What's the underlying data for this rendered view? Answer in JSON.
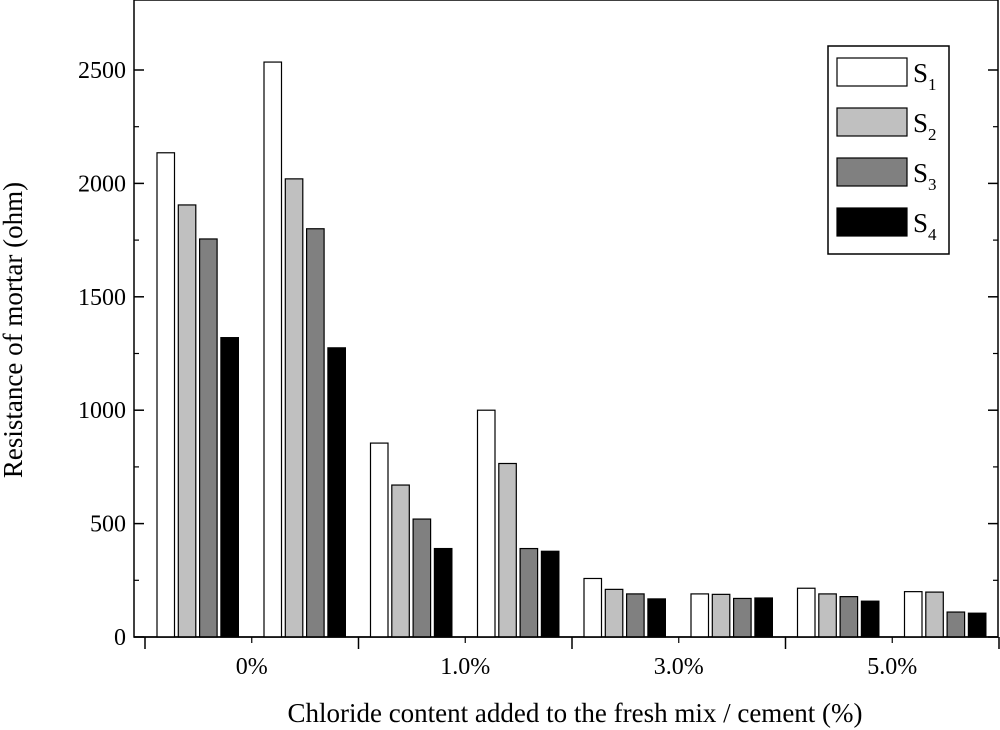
{
  "chart_data": {
    "type": "bar",
    "categories": [
      "0%",
      "1.0%",
      "3.0%",
      "5.0%"
    ],
    "groups": [
      {
        "category": "0%",
        "subgroups": [
          {
            "S1": 2135,
            "S2": 1905,
            "S3": 1755,
            "S4": 1320
          },
          {
            "S1": 2535,
            "S2": 2020,
            "S3": 1800,
            "S4": 1275
          }
        ]
      },
      {
        "category": "1.0%",
        "subgroups": [
          {
            "S1": 855,
            "S2": 670,
            "S3": 520,
            "S4": 390
          },
          {
            "S1": 1000,
            "S2": 765,
            "S3": 390,
            "S4": 378
          }
        ]
      },
      {
        "category": "3.0%",
        "subgroups": [
          {
            "S1": 258,
            "S2": 210,
            "S3": 190,
            "S4": 168
          },
          {
            "S1": 190,
            "S2": 188,
            "S3": 170,
            "S4": 172
          }
        ]
      },
      {
        "category": "5.0%",
        "subgroups": [
          {
            "S1": 215,
            "S2": 190,
            "S3": 178,
            "S4": 158
          },
          {
            "S1": 200,
            "S2": 198,
            "S3": 110,
            "S4": 105
          }
        ]
      }
    ],
    "series": [
      {
        "name": "S",
        "sub": "1",
        "key": "S1",
        "color": "#ffffff"
      },
      {
        "name": "S",
        "sub": "2",
        "key": "S2",
        "color": "#c0c0c0"
      },
      {
        "name": "S",
        "sub": "3",
        "key": "S3",
        "color": "#808080"
      },
      {
        "name": "S",
        "sub": "4",
        "key": "S4",
        "color": "#000000"
      }
    ],
    "xlabel": "Chloride content added to the fresh mix / cement (%)",
    "ylabel": "Resistance of mortar (ohm)",
    "ylim": [
      0,
      2500
    ],
    "y_ticks": [
      "0",
      "500",
      "1000",
      "1500",
      "2000",
      "2500"
    ],
    "y_tick_values": [
      0,
      500,
      1000,
      1500,
      2000,
      2500
    ],
    "legend_position": "top-right",
    "grid": false
  }
}
